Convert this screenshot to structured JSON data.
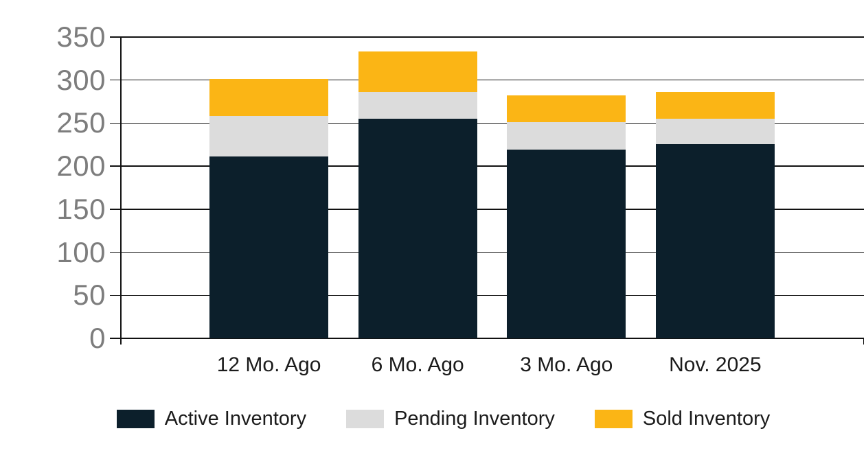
{
  "chart_data": {
    "type": "bar",
    "stacked": true,
    "title": "",
    "xlabel": "",
    "ylabel": "",
    "categories": [
      "12 Mo. Ago",
      "6 Mo. Ago",
      "3 Mo. Ago",
      "Nov. 2025"
    ],
    "series": [
      {
        "name": "Active Inventory",
        "color": "#0c1f2b",
        "values": [
          211,
          255,
          219,
          226
        ]
      },
      {
        "name": "Pending Inventory",
        "color": "#dcdcdc",
        "values": [
          47,
          31,
          32,
          29
        ]
      },
      {
        "name": "Sold Inventory",
        "color": "#fbb515",
        "values": [
          43,
          47,
          31,
          31
        ]
      }
    ],
    "y_ticks": [
      0,
      50,
      100,
      150,
      200,
      250,
      300,
      350
    ],
    "ylim": [
      0,
      350
    ],
    "grid": true,
    "legend_position": "bottom",
    "colors": {
      "grid": "#111111",
      "axis_tick_labels": "#7d7d7d",
      "category_labels": "#1b1b1b",
      "legend_text": "#1b1b1b",
      "background": "#ffffff"
    }
  }
}
